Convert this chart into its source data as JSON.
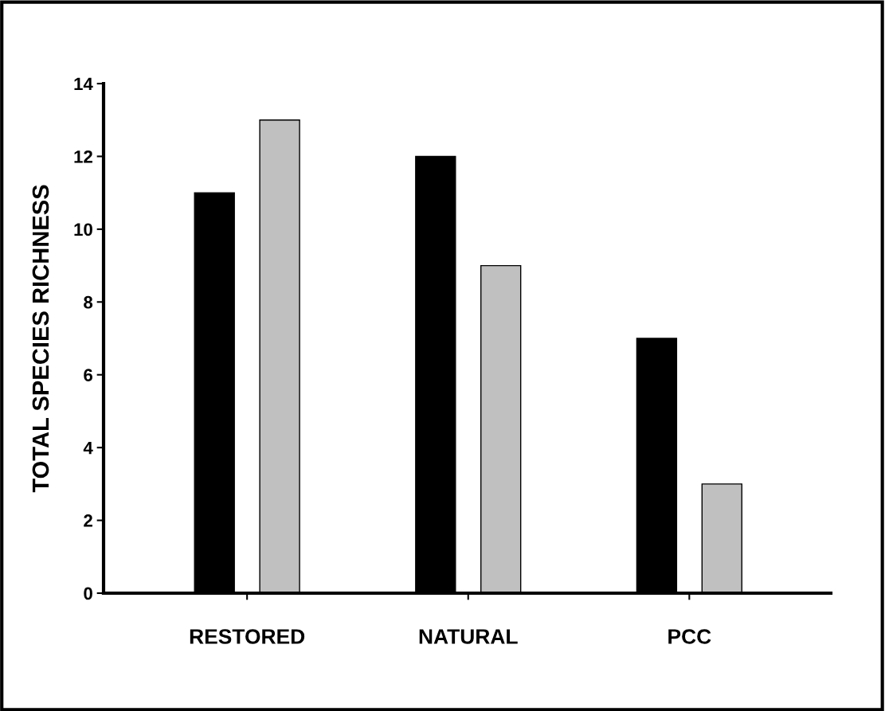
{
  "chart_data": {
    "type": "bar",
    "ylabel": "TOTAL SPECIES RICHNESS",
    "categories": [
      "RESTORED",
      "NATURAL",
      "PCC"
    ],
    "series": [
      {
        "color": "#000000",
        "values": [
          11,
          12,
          7
        ]
      },
      {
        "color": "#c0c0c0",
        "values": [
          13,
          9,
          3
        ]
      }
    ],
    "ylim": [
      0,
      14
    ],
    "yticks": [
      0,
      2,
      4,
      6,
      8,
      10,
      12,
      14
    ],
    "grid": false
  }
}
